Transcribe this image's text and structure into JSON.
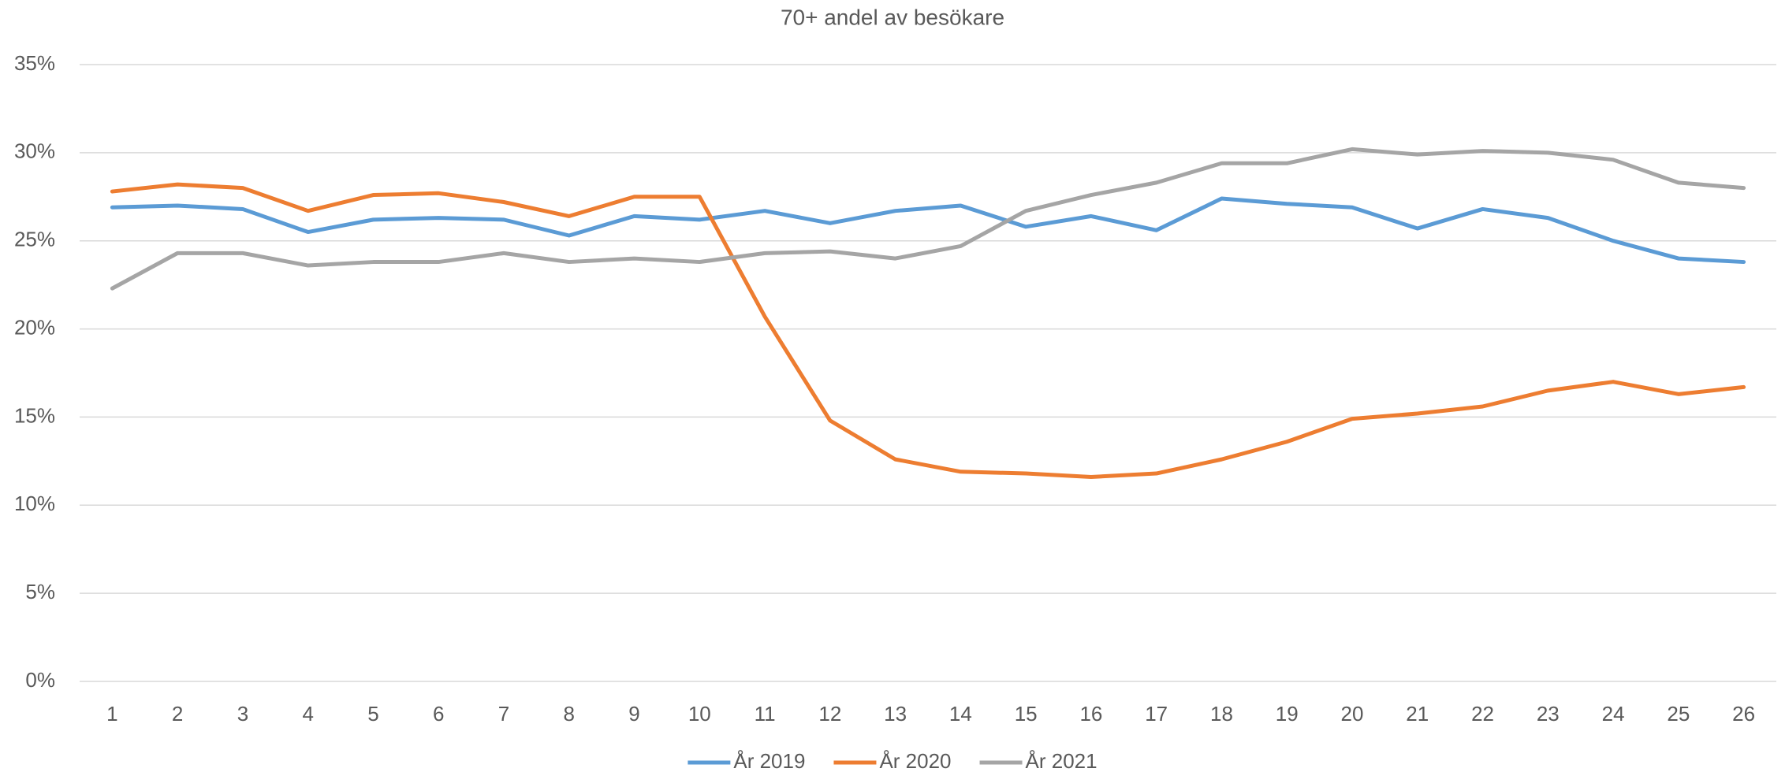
{
  "chart_data": {
    "type": "line",
    "title": "70+ andel av besökare",
    "categories": [
      1,
      2,
      3,
      4,
      5,
      6,
      7,
      8,
      9,
      10,
      11,
      12,
      13,
      14,
      15,
      16,
      17,
      18,
      19,
      20,
      21,
      22,
      23,
      24,
      25,
      26
    ],
    "series": [
      {
        "name": "År 2019",
        "color": "#5b9bd5",
        "values": [
          26.9,
          27.0,
          26.8,
          25.5,
          26.2,
          26.3,
          26.2,
          25.3,
          26.4,
          26.2,
          26.7,
          26.0,
          26.7,
          27.0,
          25.8,
          26.4,
          25.6,
          27.4,
          27.1,
          26.9,
          25.7,
          26.8,
          26.3,
          25.0,
          24.0,
          23.8
        ]
      },
      {
        "name": "År 2020",
        "color": "#ed7d31",
        "values": [
          27.8,
          28.2,
          28.0,
          26.7,
          27.6,
          27.7,
          27.2,
          26.4,
          27.5,
          27.5,
          20.7,
          14.8,
          12.6,
          11.9,
          11.8,
          11.6,
          11.8,
          12.6,
          13.6,
          14.9,
          15.2,
          15.6,
          16.5,
          17.0,
          16.3,
          16.7
        ]
      },
      {
        "name": "År 2021",
        "color": "#a5a5a5",
        "values": [
          22.3,
          24.3,
          24.3,
          23.6,
          23.8,
          23.8,
          24.3,
          23.8,
          24.0,
          23.8,
          24.3,
          24.4,
          24.0,
          24.7,
          26.7,
          27.6,
          28.3,
          29.4,
          29.4,
          30.2,
          29.9,
          30.1,
          30.0,
          29.6,
          28.3,
          28.0
        ]
      }
    ],
    "ylim": [
      0,
      35
    ],
    "yticks": [
      {
        "value": 0,
        "label": "0%"
      },
      {
        "value": 5,
        "label": "5%"
      },
      {
        "value": 10,
        "label": "10%"
      },
      {
        "value": 15,
        "label": "15%"
      },
      {
        "value": 20,
        "label": "20%"
      },
      {
        "value": 25,
        "label": "25%"
      },
      {
        "value": 30,
        "label": "30%"
      },
      {
        "value": 35,
        "label": "35%"
      }
    ],
    "grid": true,
    "legend": "bottom"
  }
}
